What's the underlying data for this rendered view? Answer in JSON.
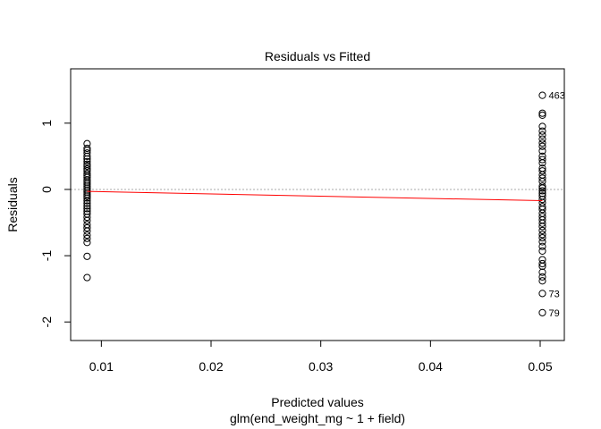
{
  "chart_data": {
    "type": "scatter",
    "title": "Residuals vs Fitted",
    "xlabel": "Predicted values",
    "subtitle": "glm(end_weight_mg ~ 1 + field)",
    "ylabel": "Residuals",
    "xlim": [
      0.0072,
      0.0522
    ],
    "ylim": [
      -2.28,
      1.82
    ],
    "xticks": [
      0.01,
      0.02,
      0.03,
      0.04,
      0.05
    ],
    "xtick_labels": [
      "0.01",
      "0.02",
      "0.03",
      "0.04",
      "0.05"
    ],
    "yticks": [
      -2,
      -1,
      0,
      1
    ],
    "ytick_labels": [
      "-2",
      "-1",
      "0",
      "1"
    ],
    "reference_line": {
      "y": 0,
      "color": "#aaaaaa",
      "style": "dotted"
    },
    "smooth_line": {
      "color": "#ff0000",
      "x": [
        0.0087,
        0.0502
      ],
      "y": [
        -0.03,
        -0.17
      ]
    },
    "series": [
      {
        "x": 0.0087,
        "y": [
          0.69,
          0.62,
          0.59,
          0.55,
          0.5,
          0.46,
          0.42,
          0.38,
          0.35,
          0.31,
          0.28,
          0.24,
          0.21,
          0.18,
          0.14,
          0.11,
          0.08,
          0.05,
          0.02,
          -0.01,
          -0.04,
          -0.07,
          -0.1,
          -0.13,
          -0.17,
          -0.21,
          -0.25,
          -0.29,
          -0.33,
          -0.37,
          -0.42,
          -0.47,
          -0.53,
          -0.58,
          -0.63,
          -0.69,
          -0.74,
          -0.8,
          -1.01,
          -1.33
        ]
      },
      {
        "x": 0.0502,
        "y": [
          1.42,
          1.15,
          1.12,
          0.95,
          0.88,
          0.82,
          0.76,
          0.7,
          0.65,
          0.58,
          0.5,
          0.45,
          0.4,
          0.32,
          0.28,
          0.22,
          0.17,
          0.12,
          0.05,
          0.02,
          -0.02,
          -0.06,
          -0.1,
          -0.15,
          -0.2,
          -0.26,
          -0.3,
          -0.36,
          -0.41,
          -0.46,
          -0.51,
          -0.56,
          -0.62,
          -0.68,
          -0.73,
          -0.79,
          -0.86,
          -0.93,
          -1.06,
          -1.12,
          -1.16,
          -1.25,
          -1.32,
          -1.38,
          -1.57,
          -1.86
        ]
      }
    ],
    "point_labels": [
      {
        "text": "463",
        "x": 0.0502,
        "y": 1.42
      },
      {
        "text": "73",
        "x": 0.0502,
        "y": -1.57
      },
      {
        "text": "79",
        "x": 0.0502,
        "y": -1.86
      }
    ]
  }
}
